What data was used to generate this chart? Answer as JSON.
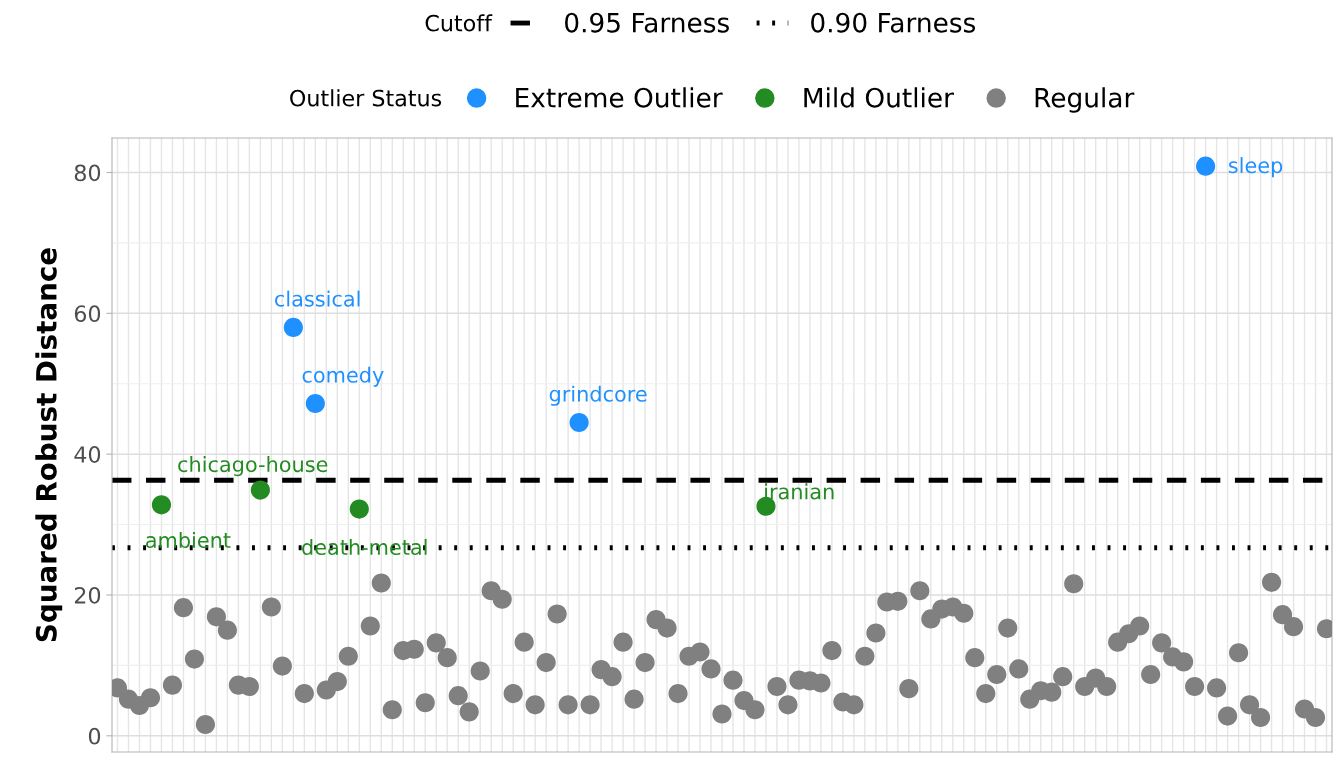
{
  "chart_data": {
    "type": "scatter",
    "ylabel": "Squared Robust Distance",
    "legend_title": [
      "Cutoff",
      "Outlier Status"
    ],
    "categories": [
      null,
      null,
      null,
      null,
      null,
      null,
      null,
      null,
      null,
      null,
      null,
      null,
      null,
      null,
      null,
      null,
      null,
      null,
      null,
      null,
      null,
      null,
      null,
      null,
      null,
      null,
      null,
      null,
      null,
      null,
      null,
      null,
      null,
      null,
      null,
      null,
      null,
      null,
      null,
      null,
      null,
      null,
      null,
      null,
      null,
      null,
      null,
      null,
      null,
      null,
      null,
      null,
      null,
      null,
      null,
      null,
      null,
      null,
      null,
      null,
      null,
      null,
      null,
      null,
      null,
      null,
      null,
      null,
      null,
      null,
      null,
      null,
      null,
      null,
      null,
      null,
      null,
      null,
      null,
      null,
      null,
      null,
      null,
      null,
      null,
      null,
      null,
      null,
      null,
      null,
      null,
      null,
      null,
      null,
      null,
      null,
      null,
      null,
      null,
      null,
      null,
      null,
      null,
      null,
      null,
      null,
      null,
      null,
      null,
      null,
      null
    ],
    "series": [
      {
        "name": "Extreme Outlier",
        "color": "#1e90ff",
        "values": [
          null,
          null,
          null,
          null,
          null,
          null,
          null,
          null,
          null,
          null,
          null,
          null,
          null,
          null,
          null,
          null,
          58.0,
          null,
          47.2,
          null,
          null,
          null,
          null,
          null,
          null,
          null,
          null,
          null,
          null,
          null,
          null,
          null,
          null,
          null,
          null,
          null,
          null,
          null,
          null,
          null,
          null,
          null,
          44.5,
          null,
          null,
          null,
          null,
          null,
          null,
          null,
          null,
          null,
          null,
          null,
          null,
          null,
          null,
          null,
          null,
          null,
          null,
          null,
          null,
          null,
          null,
          null,
          null,
          null,
          null,
          null,
          null,
          null,
          null,
          null,
          null,
          null,
          null,
          null,
          null,
          null,
          null,
          null,
          null,
          null,
          null,
          null,
          null,
          null,
          null,
          null,
          null,
          null,
          null,
          null,
          null,
          null,
          null,
          null,
          null,
          80.9,
          null,
          null,
          null,
          null,
          null,
          null,
          null,
          null,
          null,
          null,
          null
        ]
      },
      {
        "name": "Mild Outlier",
        "color": "#228b22",
        "values": [
          null,
          null,
          null,
          null,
          32.8,
          null,
          null,
          null,
          null,
          null,
          null,
          null,
          null,
          34.9,
          null,
          null,
          null,
          null,
          null,
          null,
          null,
          null,
          32.2,
          null,
          null,
          null,
          null,
          null,
          null,
          null,
          null,
          null,
          null,
          null,
          null,
          null,
          null,
          null,
          null,
          null,
          null,
          null,
          null,
          null,
          null,
          null,
          null,
          null,
          null,
          null,
          null,
          null,
          null,
          null,
          null,
          null,
          null,
          null,
          null,
          32.6,
          null,
          null,
          null,
          null,
          null,
          null,
          null,
          null,
          null,
          null,
          null,
          null,
          null,
          null,
          null,
          null,
          null,
          null,
          null,
          null,
          null,
          null,
          null,
          null,
          null,
          null,
          null,
          null,
          null,
          null,
          null,
          null,
          null,
          null,
          null,
          null,
          null,
          null,
          null,
          null,
          null,
          null,
          null,
          null,
          null,
          null,
          null,
          null,
          null,
          null,
          null
        ]
      },
      {
        "name": "Regular",
        "color": "#808080",
        "values": [
          6.8,
          5.2,
          4.3,
          5.4,
          null,
          7.2,
          18.2,
          10.9,
          1.6,
          16.9,
          15.0,
          7.2,
          7.0,
          null,
          18.3,
          9.9,
          null,
          6.0,
          null,
          6.5,
          7.7,
          11.3,
          null,
          15.6,
          21.7,
          3.7,
          12.1,
          12.3,
          4.7,
          13.2,
          11.1,
          5.7,
          3.4,
          9.2,
          20.6,
          19.4,
          6.0,
          13.3,
          4.4,
          10.4,
          17.3,
          4.4,
          null,
          4.4,
          9.4,
          8.4,
          13.3,
          5.2,
          10.4,
          16.5,
          15.3,
          6.0,
          11.3,
          11.9,
          9.5,
          3.1,
          7.9,
          5.0,
          3.7,
          null,
          7.0,
          4.4,
          7.9,
          7.8,
          7.5,
          12.1,
          4.8,
          4.4,
          11.3,
          14.6,
          19.0,
          19.1,
          6.7,
          20.6,
          16.6,
          18.0,
          18.3,
          17.4,
          11.1,
          6.0,
          8.7,
          15.3,
          9.5,
          5.2,
          6.4,
          6.2,
          8.4,
          21.6,
          7.0,
          8.2,
          7.0,
          13.3,
          14.5,
          15.6,
          8.7,
          13.2,
          11.2,
          10.5,
          7.0,
          null,
          6.8,
          2.8,
          11.8,
          4.4,
          2.6,
          21.8,
          17.2,
          15.5,
          3.8,
          2.6,
          15.2
        ]
      }
    ],
    "annotations": [
      "ambient",
      "chicago-house",
      "classical",
      "comedy",
      "death-metal",
      "grindcore",
      "iranian",
      "sleep"
    ],
    "ref_lines": [
      {
        "axis": "y",
        "value": 36.3,
        "label": "0.95 Farness",
        "line_style": "dashed",
        "color": "#000000"
      },
      {
        "axis": "y",
        "value": 26.7,
        "label": "0.90 Farness",
        "line_style": "dotted",
        "color": "#000000"
      }
    ],
    "ylim": [
      -2.3,
      84.9
    ],
    "yticks": [
      0,
      20,
      40,
      60,
      80
    ],
    "grid": true,
    "legend": "top",
    "tick_labels": "y",
    "marker": "circle"
  }
}
